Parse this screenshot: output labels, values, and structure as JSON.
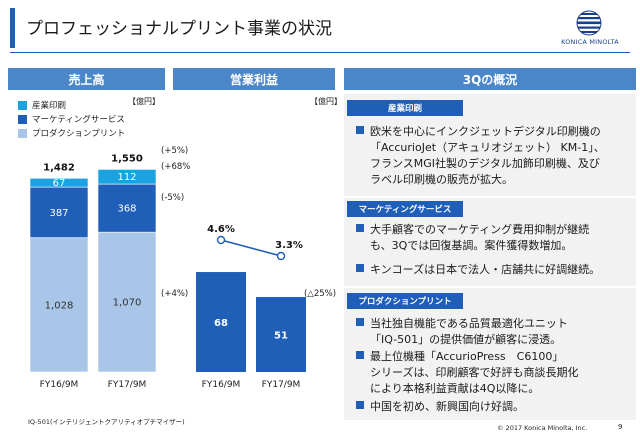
{
  "title": "プロフェッショナルプリント事業の状況",
  "logo": {
    "text": "KONICA MINOLTA",
    "color": "#1a3f8a"
  },
  "panels": {
    "sales": "売上高",
    "op": "営業利益",
    "overview": "3Qの概況"
  },
  "colors": {
    "accent": "#1f5fb8",
    "header": "#4b86c9",
    "industrial": "#1aa3e0",
    "marketing": "#1f5fb8",
    "production": "#a9c5e8",
    "line": "#1f5fb8"
  },
  "units": {
    "sales": "【億円】",
    "op": "【億円】"
  },
  "legend": [
    "産業印刷",
    "マーケティングサービス",
    "プロダクションプリント"
  ],
  "chart_data": [
    {
      "type": "bar",
      "stacked": true,
      "categories": [
        "FY16/9M",
        "FY17/9M"
      ],
      "series": [
        {
          "name": "プロダクションプリント",
          "values": [
            1028,
            1070
          ],
          "labels": [
            "1,028",
            "1,070"
          ]
        },
        {
          "name": "マーケティングサービス",
          "values": [
            387,
            368
          ],
          "labels": [
            "387",
            "368"
          ]
        },
        {
          "name": "産業印刷",
          "values": [
            67,
            112
          ],
          "labels": [
            "67",
            "112"
          ]
        }
      ],
      "totals": [
        1482,
        1550
      ],
      "total_labels": [
        "1,482",
        "1,550"
      ],
      "annotations": [
        "(+5%)",
        "(+68%)",
        "(-5%)",
        "(+4%)"
      ]
    },
    {
      "type": "bar",
      "categories": [
        "FY16/9M",
        "FY17/9M"
      ],
      "values": [
        68,
        51
      ],
      "value_labels": [
        "68",
        "51"
      ],
      "annotation": "(△25%)",
      "line": {
        "values": [
          4.6,
          3.3
        ],
        "labels": [
          "4.6%",
          "3.3%"
        ]
      }
    }
  ],
  "overview": {
    "sections": [
      {
        "header": "産業印刷",
        "bullets": [
          [
            "欧米を中心にインクジェットデジタル印刷機の",
            "「AccurioJet（アキュリオジェット） KM-1」、",
            "フランスMGI社製のデジタル加飾印刷機、及び",
            "ラベル印刷機の販売が拡大。"
          ]
        ]
      },
      {
        "header": "マーケティングサービス",
        "bullets": [
          [
            "大手顧客でのマーケティング費用抑制が継続",
            "も、3Qでは回復基調。案件獲得数増加。"
          ],
          [
            "キンコーズは日本で法人・店舗共に好調継続。"
          ]
        ]
      },
      {
        "header": "プロダクションプリント",
        "bullets": [
          [
            "当社独自機能である品質最適化ユニット",
            "「IQ-501」の提供価値が顧客に浸透。"
          ],
          [
            "最上位機種「AccurioPress　C6100」",
            "シリーズは、印刷顧客で好評も商談長期化",
            "により本格利益貢献は4Q以降に。"
          ],
          [
            "中国を初め、新興国向け好調。"
          ]
        ]
      }
    ]
  },
  "footnote": "IQ-501(インテリジェントクアリティオプチマイザー)",
  "copyright": "© 2017 Konica Minolta, Inc.",
  "page_number": "9"
}
